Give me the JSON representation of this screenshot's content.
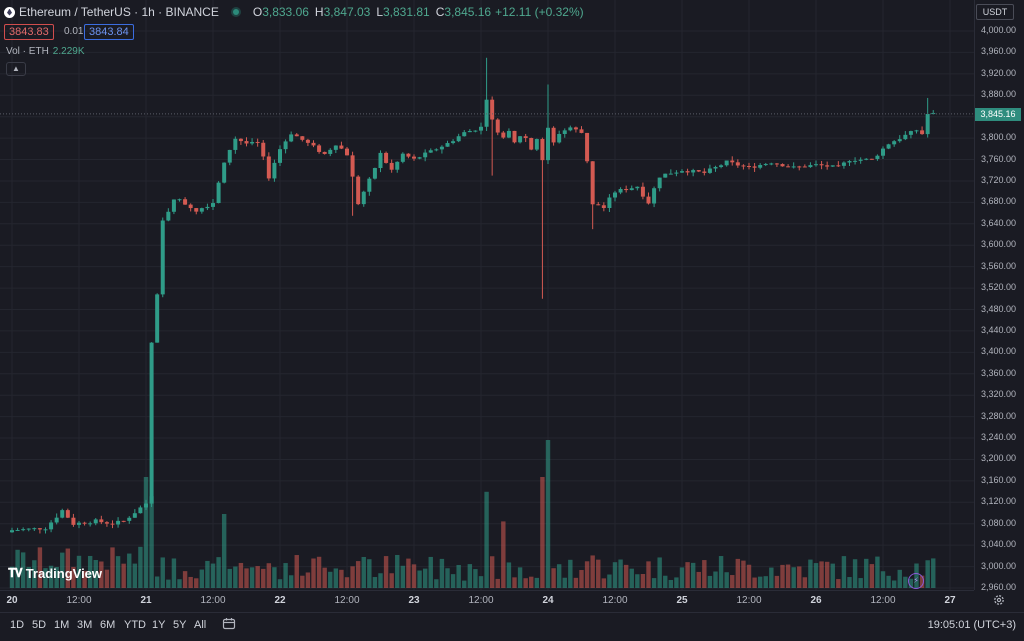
{
  "header": {
    "title": "Ethereum / TetherUS · 1h · BINANCE",
    "o_label": "O",
    "o_value": "3,833.06",
    "h_label": "H",
    "h_value": "3,847.03",
    "l_label": "L",
    "l_value": "3,831.81",
    "c_label": "C",
    "c_value": "3,845.16",
    "change": "+12.11 (+0.32%)"
  },
  "bid": "3843.83",
  "spread": "0.01",
  "ask": "3843.84",
  "volume": {
    "label": "Vol · ETH",
    "value": "2.229K"
  },
  "collapse_icon": "chevron-up-icon",
  "currency": "USDT",
  "last_price": "3,845.16",
  "brand": "TradingView",
  "ranges": [
    "1D",
    "5D",
    "1M",
    "3M",
    "6M",
    "YTD",
    "1Y",
    "5Y",
    "All"
  ],
  "clock": "19:05:01 (UTC+3)",
  "colors": {
    "up": "#2f9c88",
    "down": "#d35a52",
    "background": "#1a1b23"
  },
  "chart_data": {
    "type": "candlestick",
    "ylim": [
      2960,
      4000
    ],
    "y_ticks": [
      "4,000.00",
      "3,960.00",
      "3,920.00",
      "3,880.00",
      "3,840.00",
      "3,800.00",
      "3,760.00",
      "3,720.00",
      "3,680.00",
      "3,640.00",
      "3,600.00",
      "3,560.00",
      "3,520.00",
      "3,480.00",
      "3,440.00",
      "3,400.00",
      "3,360.00",
      "3,320.00",
      "3,280.00",
      "3,240.00",
      "3,200.00",
      "3,160.00",
      "3,120.00",
      "3,080.00",
      "3,040.00",
      "3,000.00",
      "2,960.00"
    ],
    "x_ticks": [
      {
        "label": "20",
        "day": true,
        "t": 0
      },
      {
        "label": "12:00",
        "day": false,
        "t": 12
      },
      {
        "label": "21",
        "day": true,
        "t": 24
      },
      {
        "label": "12:00",
        "day": false,
        "t": 36
      },
      {
        "label": "22",
        "day": true,
        "t": 48
      },
      {
        "label": "12:00",
        "day": false,
        "t": 60
      },
      {
        "label": "23",
        "day": true,
        "t": 72
      },
      {
        "label": "12:00",
        "day": false,
        "t": 84
      },
      {
        "label": "24",
        "day": true,
        "t": 96
      },
      {
        "label": "12:00",
        "day": false,
        "t": 108
      },
      {
        "label": "25",
        "day": true,
        "t": 120
      },
      {
        "label": "12:00",
        "day": false,
        "t": 132
      },
      {
        "label": "26",
        "day": true,
        "t": 144
      },
      {
        "label": "12:00",
        "day": false,
        "t": 156
      },
      {
        "label": "27",
        "day": true,
        "t": 168
      }
    ],
    "anchors": [
      [
        0,
        3068
      ],
      [
        6,
        3072
      ],
      [
        9,
        3105
      ],
      [
        11,
        3080
      ],
      [
        15,
        3085
      ],
      [
        18,
        3080
      ],
      [
        20,
        3085
      ],
      [
        24,
        3118
      ],
      [
        25,
        3420
      ],
      [
        26,
        3500
      ],
      [
        27,
        3640
      ],
      [
        29,
        3690
      ],
      [
        33,
        3665
      ],
      [
        36,
        3680
      ],
      [
        38,
        3760
      ],
      [
        40,
        3800
      ],
      [
        42,
        3790
      ],
      [
        44,
        3790
      ],
      [
        46,
        3730
      ],
      [
        48,
        3780
      ],
      [
        50,
        3810
      ],
      [
        53,
        3790
      ],
      [
        56,
        3770
      ],
      [
        58,
        3790
      ],
      [
        60,
        3770
      ],
      [
        62,
        3680
      ],
      [
        64,
        3720
      ],
      [
        66,
        3770
      ],
      [
        68,
        3740
      ],
      [
        70,
        3770
      ],
      [
        72,
        3760
      ],
      [
        75,
        3775
      ],
      [
        78,
        3790
      ],
      [
        81,
        3810
      ],
      [
        84,
        3820
      ],
      [
        85,
        3880
      ],
      [
        86,
        3830
      ],
      [
        88,
        3800
      ],
      [
        89,
        3810
      ],
      [
        90,
        3790
      ],
      [
        91,
        3805
      ],
      [
        92,
        3800
      ],
      [
        93,
        3780
      ],
      [
        94,
        3800
      ],
      [
        95,
        3760
      ],
      [
        96,
        3820
      ],
      [
        97,
        3790
      ],
      [
        98,
        3810
      ],
      [
        100,
        3820
      ],
      [
        102,
        3810
      ],
      [
        103,
        3760
      ],
      [
        104,
        3680
      ],
      [
        106,
        3670
      ],
      [
        108,
        3700
      ],
      [
        112,
        3710
      ],
      [
        114,
        3680
      ],
      [
        116,
        3730
      ],
      [
        120,
        3740
      ],
      [
        124,
        3735
      ],
      [
        128,
        3755
      ],
      [
        132,
        3745
      ],
      [
        136,
        3755
      ],
      [
        140,
        3745
      ],
      [
        144,
        3750
      ],
      [
        148,
        3745
      ],
      [
        150,
        3760
      ],
      [
        154,
        3760
      ],
      [
        157,
        3790
      ],
      [
        160,
        3805
      ],
      [
        162,
        3815
      ],
      [
        163,
        3808
      ],
      [
        164,
        3845
      ],
      [
        165,
        3845
      ]
    ],
    "spikes": [
      {
        "t": 85,
        "high": 3950
      },
      {
        "t": 86,
        "low": 3730
      },
      {
        "t": 95,
        "low": 3500
      },
      {
        "t": 96,
        "high": 3900
      },
      {
        "t": 104,
        "low": 3630
      },
      {
        "t": 61,
        "low": 3655
      },
      {
        "t": 164,
        "high": 3875
      }
    ],
    "volume_spikes": [
      {
        "t": 24,
        "v": 0.75
      },
      {
        "t": 25,
        "v": 0.62
      },
      {
        "t": 38,
        "v": 0.5
      },
      {
        "t": 85,
        "v": 0.65
      },
      {
        "t": 88,
        "v": 0.45
      },
      {
        "t": 95,
        "v": 0.75
      },
      {
        "t": 96,
        "v": 1.0
      },
      {
        "t": 104,
        "v": 0.22
      },
      {
        "t": 165,
        "v": 0.2
      }
    ]
  }
}
